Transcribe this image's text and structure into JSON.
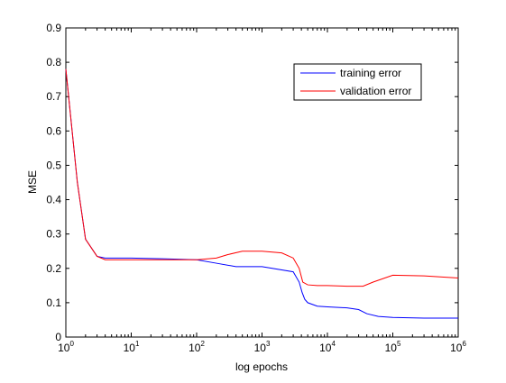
{
  "chart_data": {
    "type": "line",
    "title": "",
    "xlabel": "log epochs",
    "ylabel": "MSE",
    "x_scale": "log",
    "xlim": [
      1,
      1000000
    ],
    "ylim": [
      0,
      0.9
    ],
    "x_tick_base": "10",
    "x_tick_exponents": [
      "0",
      "1",
      "2",
      "3",
      "4",
      "5",
      "6"
    ],
    "y_ticks": [
      0,
      0.1,
      0.2,
      0.3,
      0.4,
      0.5,
      0.6,
      0.7,
      0.8,
      0.9
    ],
    "y_tick_labels": [
      "0",
      "0.1",
      "0.2",
      "0.3",
      "0.4",
      "0.5",
      "0.6",
      "0.7",
      "0.8",
      "0.9"
    ],
    "grid": false,
    "legend_position": "top-right",
    "series": [
      {
        "name": "training error",
        "color": "#0000ff",
        "x": [
          1,
          1.5,
          2,
          3,
          4,
          10,
          30,
          100,
          200,
          400,
          1000,
          3000,
          3700,
          4100,
          4500,
          5000,
          7000,
          10000,
          20000,
          30000,
          40000,
          60000,
          100000,
          300000,
          1000000
        ],
        "y": [
          0.78,
          0.45,
          0.285,
          0.235,
          0.23,
          0.23,
          0.228,
          0.225,
          0.215,
          0.205,
          0.205,
          0.19,
          0.16,
          0.13,
          0.11,
          0.1,
          0.09,
          0.088,
          0.085,
          0.08,
          0.068,
          0.06,
          0.057,
          0.055,
          0.055
        ]
      },
      {
        "name": "validation error",
        "color": "#ff0000",
        "x": [
          1,
          1.5,
          2,
          3,
          4,
          10,
          30,
          100,
          200,
          300,
          500,
          1000,
          2000,
          3000,
          3700,
          4200,
          5000,
          7000,
          10000,
          20000,
          35000,
          50000,
          100000,
          300000,
          1000000
        ],
        "y": [
          0.78,
          0.45,
          0.285,
          0.235,
          0.225,
          0.225,
          0.225,
          0.225,
          0.23,
          0.24,
          0.25,
          0.25,
          0.245,
          0.23,
          0.2,
          0.16,
          0.152,
          0.15,
          0.15,
          0.148,
          0.148,
          0.16,
          0.18,
          0.178,
          0.172
        ]
      }
    ]
  }
}
